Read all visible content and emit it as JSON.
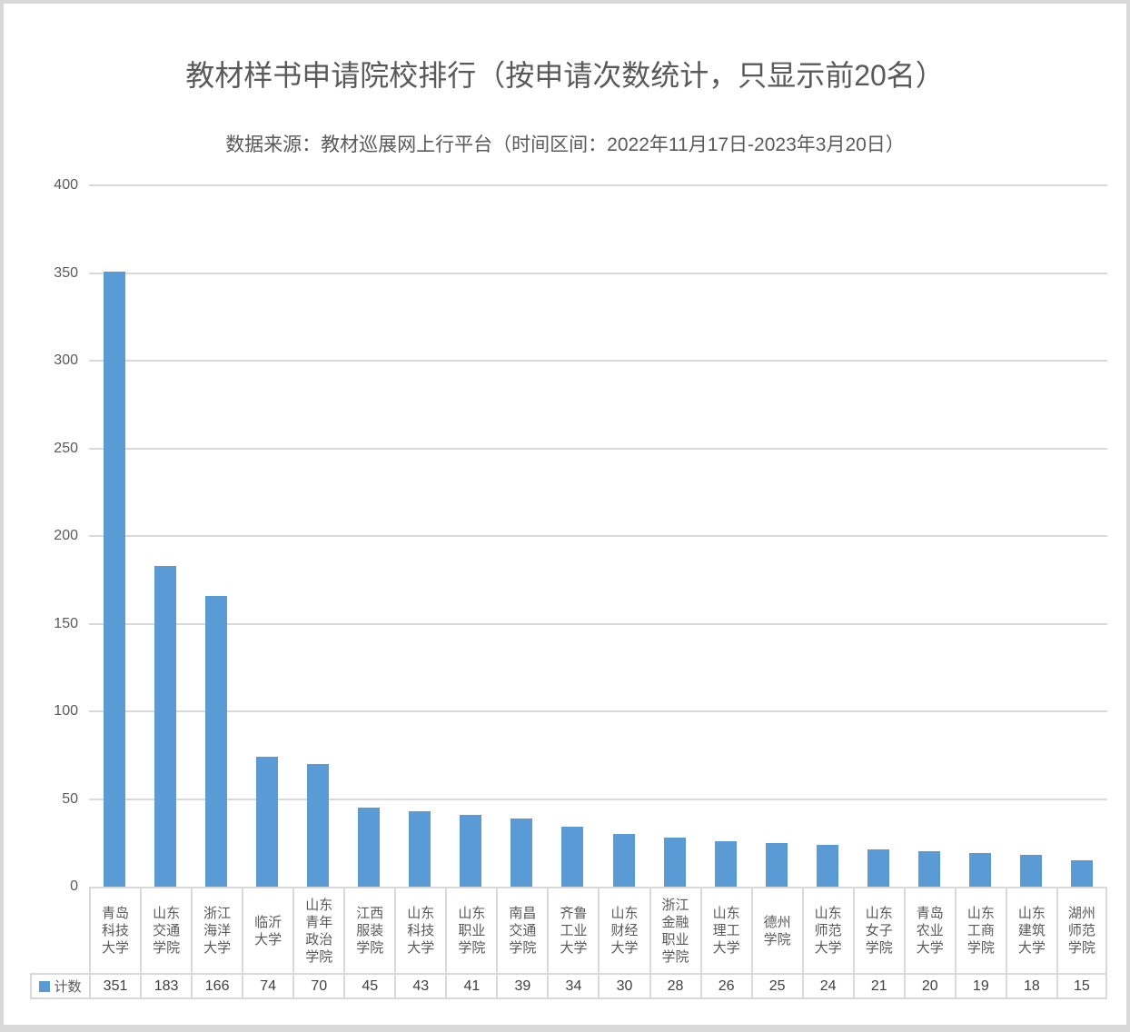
{
  "chart_data": {
    "type": "bar",
    "title": "教材样书申请院校排行（按申请次数统计，只显示前20名）",
    "subtitle": "数据来源：教材巡展网上行平台（时间区间：2022年11月17日-2023年3月20日）",
    "series_name": "计数",
    "categories": [
      "青岛科技大学",
      "山东交通学院",
      "浙江海洋大学",
      "临沂大学",
      "山东青年政治学院",
      "江西服装学院",
      "山东科技大学",
      "山东职业学院",
      "南昌交通学院",
      "齐鲁工业大学",
      "山东财经大学",
      "浙江金融职业学院",
      "山东理工大学",
      "德州学院",
      "山东师范大学",
      "山东女子学院",
      "青岛农业大学",
      "山东工商学院",
      "山东建筑大学",
      "湖州师范学院"
    ],
    "categories_wrapped": [
      "青岛\n科技\n大学",
      "山东\n交通\n学院",
      "浙江\n海洋\n大学",
      "临沂\n大学",
      "山东\n青年\n政治\n学院",
      "江西\n服装\n学院",
      "山东\n科技\n大学",
      "山东\n职业\n学院",
      "南昌\n交通\n学院",
      "齐鲁\n工业\n大学",
      "山东\n财经\n大学",
      "浙江\n金融\n职业\n学院",
      "山东\n理工\n大学",
      "德州\n学院",
      "山东\n师范\n大学",
      "山东\n女子\n学院",
      "青岛\n农业\n大学",
      "山东\n工商\n学院",
      "山东\n建筑\n大学",
      "湖州\n师范\n学院"
    ],
    "values": [
      351,
      183,
      166,
      74,
      70,
      45,
      43,
      41,
      39,
      34,
      30,
      28,
      26,
      25,
      24,
      21,
      20,
      19,
      18,
      15
    ],
    "ylim": [
      0,
      400
    ],
    "yticks": [
      0,
      50,
      100,
      150,
      200,
      250,
      300,
      350,
      400
    ],
    "grid": true,
    "legend_position": "data-table-left",
    "colors": {
      "bar": "#5b9bd5",
      "grid": "#d9d9d9",
      "text": "#595959",
      "value_text": "#404040",
      "frame_border": "#d8d8d8"
    }
  }
}
